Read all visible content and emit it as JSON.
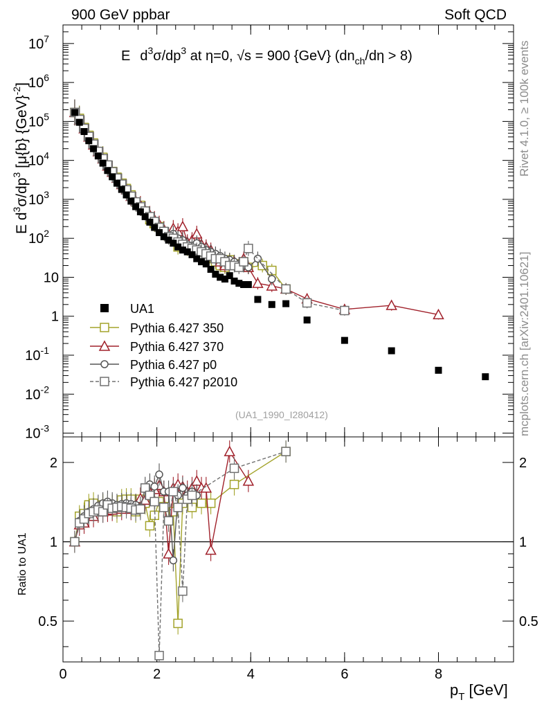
{
  "header": {
    "left": "900 GeV ppbar",
    "right": "Soft QCD"
  },
  "side_labels": {
    "rivet": "Rivet 4.1.0, ≥ 100k events",
    "mcplots": "mcplots.cern.ch [arXiv:2401.10621]"
  },
  "chart_data": {
    "type": "scatter",
    "title": "E  d³σ/dp³ at η=0, √s = 900 {GeV} (dn_ch/dη > 8)",
    "title_parts": {
      "a": "E",
      "b": "d",
      "c": "3",
      "d": "σ/dp",
      "e": "3",
      "f": " at η=0, ",
      "g": "√s",
      "h": " = 900 {GeV} (dn",
      "i": "ch",
      "j": "/dη > 8)"
    },
    "ylabel_parts": {
      "a": "E d",
      "b": "3",
      "c": "σ/dp",
      "d": "3",
      "e": " [μ{b} {GeV}",
      "f": "-2",
      "g": "]"
    },
    "xlabel_parts": {
      "a": "p",
      "b": "T",
      "c": " [GeV]"
    },
    "ratio_ylabel": "Ratio to UA1",
    "watermark": "(UA1_1990_I280412)",
    "xlim": [
      0,
      9.6
    ],
    "ylim": [
      0.0008,
      30000000
    ],
    "ratio_ylim": [
      0.35,
      2.5
    ],
    "x_ticks": [
      "0",
      "2",
      "4",
      "6",
      "8"
    ],
    "y_ticks": [
      {
        "b": "10",
        "e": "-3",
        "v": 0.001
      },
      {
        "b": "10",
        "e": "-2",
        "v": 0.01
      },
      {
        "b": "10",
        "e": "-1",
        "v": 0.1
      },
      {
        "b": "1",
        "e": "",
        "v": 1
      },
      {
        "b": "10",
        "e": "",
        "v": 10
      },
      {
        "b": "10",
        "e": "2",
        "v": 100
      },
      {
        "b": "10",
        "e": "3",
        "v": 1000
      },
      {
        "b": "10",
        "e": "4",
        "v": 10000
      },
      {
        "b": "10",
        "e": "5",
        "v": 100000
      },
      {
        "b": "10",
        "e": "6",
        "v": 1000000
      },
      {
        "b": "10",
        "e": "7",
        "v": 10000000
      }
    ],
    "ratio_ticks": [
      "0.5",
      "1",
      "2"
    ],
    "ratio_tick_values": [
      0.5,
      1,
      2
    ],
    "series": [
      {
        "name": "UA1",
        "color": "#000000",
        "marker": "filled-square",
        "dash": "",
        "x": [
          0.25,
          0.35,
          0.45,
          0.55,
          0.65,
          0.75,
          0.85,
          0.95,
          1.05,
          1.15,
          1.25,
          1.35,
          1.45,
          1.55,
          1.65,
          1.75,
          1.85,
          1.95,
          2.05,
          2.15,
          2.25,
          2.35,
          2.45,
          2.55,
          2.65,
          2.75,
          2.85,
          2.95,
          3.05,
          3.15,
          3.25,
          3.35,
          3.45,
          3.55,
          3.65,
          3.75,
          3.85,
          3.95,
          4.15,
          4.45,
          4.75,
          5.2,
          6.0,
          7.0,
          8.0,
          9.0
        ],
        "y": [
          170000,
          95000,
          55000,
          32000,
          20000,
          13000,
          8500,
          5500,
          3800,
          2600,
          1800,
          1300,
          900,
          650,
          480,
          360,
          260,
          190,
          140,
          110,
          90,
          75,
          60,
          50,
          45,
          38,
          30,
          25,
          22,
          16,
          12,
          10,
          9,
          11,
          8,
          7,
          6.5,
          6.5,
          2.7,
          2.0,
          2.1,
          0.8,
          0.24,
          0.13,
          0.041,
          0.028
        ]
      },
      {
        "name": "Pythia 6.427 350",
        "color": "#a3a32a",
        "marker": "open-square",
        "dash": "",
        "x": [
          0.25,
          0.35,
          0.45,
          0.55,
          0.65,
          0.75,
          0.85,
          0.95,
          1.05,
          1.15,
          1.25,
          1.35,
          1.45,
          1.55,
          1.65,
          1.75,
          1.85,
          1.95,
          2.05,
          2.15,
          2.25,
          2.35,
          2.45,
          2.55,
          2.65,
          2.75,
          2.85,
          2.95,
          3.05,
          3.15,
          3.25,
          3.35,
          3.45,
          3.55,
          3.65,
          3.75,
          3.85,
          3.95,
          4.25,
          4.45,
          4.75
        ],
        "y": [
          170000,
          120000,
          70000,
          44000,
          28000,
          17000,
          12000,
          7500,
          5200,
          3700,
          2600,
          1900,
          1300,
          850,
          700,
          500,
          300,
          240,
          200,
          150,
          110,
          100,
          60,
          70,
          55,
          52,
          60,
          45,
          30,
          35,
          25,
          20,
          18,
          28,
          22,
          20,
          25,
          18,
          20,
          15,
          5
        ]
      },
      {
        "name": "Pythia 6.427 370",
        "color": "#a0202a",
        "marker": "open-triangle",
        "dash": "",
        "x": [
          0.25,
          0.35,
          0.45,
          0.55,
          0.65,
          0.75,
          0.85,
          0.95,
          1.05,
          1.15,
          1.25,
          1.35,
          1.45,
          1.55,
          1.65,
          1.75,
          1.85,
          1.95,
          2.05,
          2.15,
          2.25,
          2.35,
          2.45,
          2.55,
          2.65,
          2.75,
          2.85,
          2.95,
          3.05,
          3.15,
          3.25,
          3.35,
          3.45,
          3.55,
          3.65,
          3.75,
          3.85,
          3.95,
          4.15,
          4.45,
          4.75,
          5.2,
          6.0,
          7.0,
          8.0
        ],
        "y": [
          170000,
          110000,
          65000,
          40000,
          25000,
          17000,
          11000,
          7200,
          5000,
          3500,
          2400,
          1800,
          1200,
          900,
          700,
          520,
          400,
          300,
          230,
          170,
          120,
          180,
          150,
          200,
          80,
          90,
          130,
          70,
          60,
          50,
          35,
          25,
          20,
          25,
          25,
          20,
          30,
          18,
          7,
          6,
          5,
          2.8,
          1.5,
          1.9,
          1.1
        ]
      },
      {
        "name": "Pythia 6.427 p0",
        "color": "#555555",
        "marker": "open-circle",
        "dash": "",
        "x": [
          0.25,
          0.35,
          0.45,
          0.55,
          0.65,
          0.75,
          0.85,
          0.95,
          1.05,
          1.15,
          1.25,
          1.35,
          1.45,
          1.55,
          1.65,
          1.75,
          1.85,
          1.95,
          2.05,
          2.15,
          2.25,
          2.35,
          2.45,
          2.55,
          2.65,
          2.75,
          2.85,
          2.95,
          3.05,
          3.15,
          3.25,
          3.35,
          3.45,
          3.55,
          3.65,
          3.75,
          3.85,
          3.95,
          4.15,
          4.45
        ],
        "y": [
          170000,
          115000,
          68000,
          42000,
          27000,
          17500,
          11500,
          7800,
          5300,
          3600,
          2500,
          1800,
          1250,
          880,
          650,
          520,
          380,
          280,
          200,
          160,
          120,
          130,
          100,
          90,
          70,
          65,
          75,
          60,
          50,
          45,
          40,
          35,
          30,
          28,
          25,
          22,
          20,
          18,
          30,
          9
        ]
      },
      {
        "name": "Pythia 6.427 p2010",
        "color": "#707070",
        "marker": "open-square",
        "dash": "5,3",
        "x": [
          0.25,
          0.35,
          0.45,
          0.55,
          0.65,
          0.75,
          0.85,
          0.95,
          1.05,
          1.15,
          1.25,
          1.35,
          1.45,
          1.55,
          1.65,
          1.75,
          1.85,
          1.95,
          2.05,
          2.15,
          2.25,
          2.35,
          2.45,
          2.55,
          2.65,
          2.75,
          2.85,
          2.95,
          3.05,
          3.15,
          3.25,
          3.35,
          3.45,
          3.55,
          3.65,
          3.75,
          3.85,
          3.95,
          4.75,
          5.2,
          6.0
        ],
        "y": [
          170000,
          112000,
          66000,
          41000,
          26000,
          17000,
          11000,
          7600,
          5100,
          3500,
          2450,
          1750,
          1200,
          860,
          640,
          500,
          360,
          270,
          190,
          150,
          110,
          100,
          80,
          70,
          60,
          55,
          50,
          45,
          40,
          35,
          30,
          30,
          25,
          20,
          20,
          18,
          25,
          55,
          5,
          2.2,
          1.4
        ]
      }
    ],
    "ratio_series": [
      {
        "name": "Pythia 6.427 350",
        "color": "#a3a32a",
        "marker": "open-square",
        "dash": "",
        "x": [
          0.25,
          0.35,
          0.45,
          0.55,
          0.65,
          0.75,
          0.85,
          0.95,
          1.05,
          1.15,
          1.25,
          1.35,
          1.45,
          1.55,
          1.65,
          1.75,
          1.85,
          1.95,
          2.05,
          2.15,
          2.25,
          2.35,
          2.45,
          2.55,
          2.75,
          2.95,
          3.15,
          3.65,
          4.75
        ],
        "y": [
          1.0,
          1.25,
          1.28,
          1.38,
          1.4,
          1.3,
          1.38,
          1.36,
          1.37,
          1.3,
          1.44,
          1.45,
          1.45,
          1.3,
          1.45,
          1.4,
          1.15,
          1.26,
          1.42,
          1.36,
          1.2,
          1.3,
          0.49,
          1.4,
          1.35,
          1.4,
          1.4,
          1.65,
          2.2
        ]
      },
      {
        "name": "Pythia 6.427 370",
        "color": "#a0202a",
        "marker": "open-triangle",
        "dash": "",
        "x": [
          0.25,
          0.35,
          0.45,
          0.55,
          0.65,
          0.75,
          0.85,
          0.95,
          1.05,
          1.15,
          1.25,
          1.35,
          1.45,
          1.55,
          1.65,
          1.75,
          1.85,
          1.95,
          2.05,
          2.15,
          2.25,
          2.35,
          2.45,
          2.55,
          2.65,
          2.75,
          2.85,
          2.95,
          3.05,
          3.15,
          3.55,
          3.95
        ],
        "y": [
          1.0,
          1.16,
          1.18,
          1.25,
          1.25,
          1.3,
          1.3,
          1.31,
          1.32,
          1.35,
          1.33,
          1.38,
          1.33,
          1.38,
          1.46,
          1.44,
          1.54,
          1.58,
          1.64,
          1.55,
          0.9,
          1.6,
          1.65,
          1.62,
          1.55,
          1.6,
          1.7,
          1.6,
          1.6,
          0.93,
          2.2,
          1.7
        ]
      },
      {
        "name": "Pythia 6.427 p0",
        "color": "#555555",
        "marker": "open-circle",
        "dash": "",
        "x": [
          0.25,
          0.35,
          0.45,
          0.55,
          0.65,
          0.75,
          0.85,
          0.95,
          1.05,
          1.15,
          1.25,
          1.35,
          1.45,
          1.55,
          1.65,
          1.75,
          1.85,
          1.95,
          2.05,
          2.15,
          2.25,
          2.35,
          2.45,
          2.55,
          2.65,
          2.75,
          2.85
        ],
        "y": [
          1.0,
          1.2,
          1.25,
          1.3,
          1.33,
          1.37,
          1.4,
          1.42,
          1.4,
          1.38,
          1.39,
          1.4,
          1.39,
          1.38,
          1.35,
          1.6,
          1.65,
          1.62,
          1.8,
          1.55,
          1.55,
          0.85,
          1.5,
          1.6,
          1.5,
          1.55,
          1.5
        ]
      },
      {
        "name": "Pythia 6.427 p2010",
        "color": "#707070",
        "marker": "open-square",
        "dash": "5,3",
        "x": [
          0.25,
          0.35,
          0.45,
          0.55,
          0.65,
          0.75,
          0.85,
          0.95,
          1.05,
          1.15,
          1.25,
          1.35,
          1.45,
          1.55,
          1.65,
          1.75,
          1.85,
          1.95,
          2.05,
          2.15,
          2.25,
          2.35,
          2.45,
          2.55,
          2.65,
          2.75,
          3.65,
          4.75
        ],
        "y": [
          1.0,
          1.18,
          1.22,
          1.28,
          1.3,
          1.32,
          1.3,
          1.38,
          1.34,
          1.35,
          1.36,
          1.35,
          1.34,
          1.32,
          1.33,
          1.6,
          1.5,
          1.42,
          0.37,
          1.35,
          1.2,
          1.55,
          1.35,
          0.65,
          1.45,
          1.5,
          1.9,
          2.2
        ]
      }
    ]
  }
}
